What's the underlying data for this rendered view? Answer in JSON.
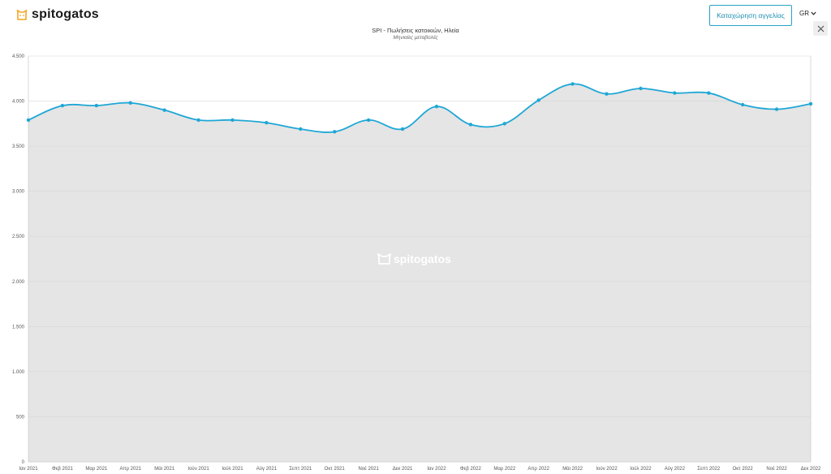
{
  "header": {
    "logo_text": "spitogatos",
    "cta_label": "Καταχώρηση αγγελίας",
    "language": "GR"
  },
  "colors": {
    "accent": "#1ea7d6",
    "area_fill": "#e5e5e5",
    "brand_orange": "#f5a623"
  },
  "icons": {
    "logo": "cat-icon",
    "close": "close-icon",
    "language": "chevron-down-icon"
  },
  "chart_data": {
    "type": "area",
    "title": "SPI - Πωλήσεις κατοικιών, Ηλεία",
    "subtitle": "Μηνιαίες μεταβολές",
    "watermark": "spitogatos",
    "xlabel": "",
    "ylabel": "",
    "ylim": [
      0,
      4500
    ],
    "yticks": [
      0,
      500,
      1000,
      1500,
      2000,
      2500,
      3000,
      3500,
      4000,
      4500
    ],
    "ytick_labels": [
      "0",
      "500",
      "1.000",
      "1.500",
      "2.000",
      "2.500",
      "3.000",
      "3.500",
      "4.000",
      "4.500"
    ],
    "grid": true,
    "legend": false,
    "categories": [
      "Ιαν 2021",
      "Φεβ 2021",
      "Μαρ 2021",
      "Απρ 2021",
      "Μάι 2021",
      "Ιούν 2021",
      "Ιούλ 2021",
      "Αύγ 2021",
      "Σεπτ 2021",
      "Οκτ 2021",
      "Νοέ 2021",
      "Δεκ 2021",
      "Ιαν 2022",
      "Φεβ 2022",
      "Μαρ 2022",
      "Απρ 2022",
      "Μάι 2022",
      "Ιούν 2022",
      "Ιούλ 2022",
      "Αύγ 2022",
      "Σεπτ 2022",
      "Οκτ 2022",
      "Νοέ 2022",
      "Δεκ 2022"
    ],
    "series": [
      {
        "values": [
          3790,
          3950,
          3950,
          3980,
          3900,
          3790,
          3790,
          3760,
          3690,
          3660,
          3790,
          3690,
          3940,
          3740,
          3750,
          4010,
          4190,
          4080,
          4140,
          4090,
          4090,
          3960,
          3910,
          3970
        ]
      }
    ]
  }
}
